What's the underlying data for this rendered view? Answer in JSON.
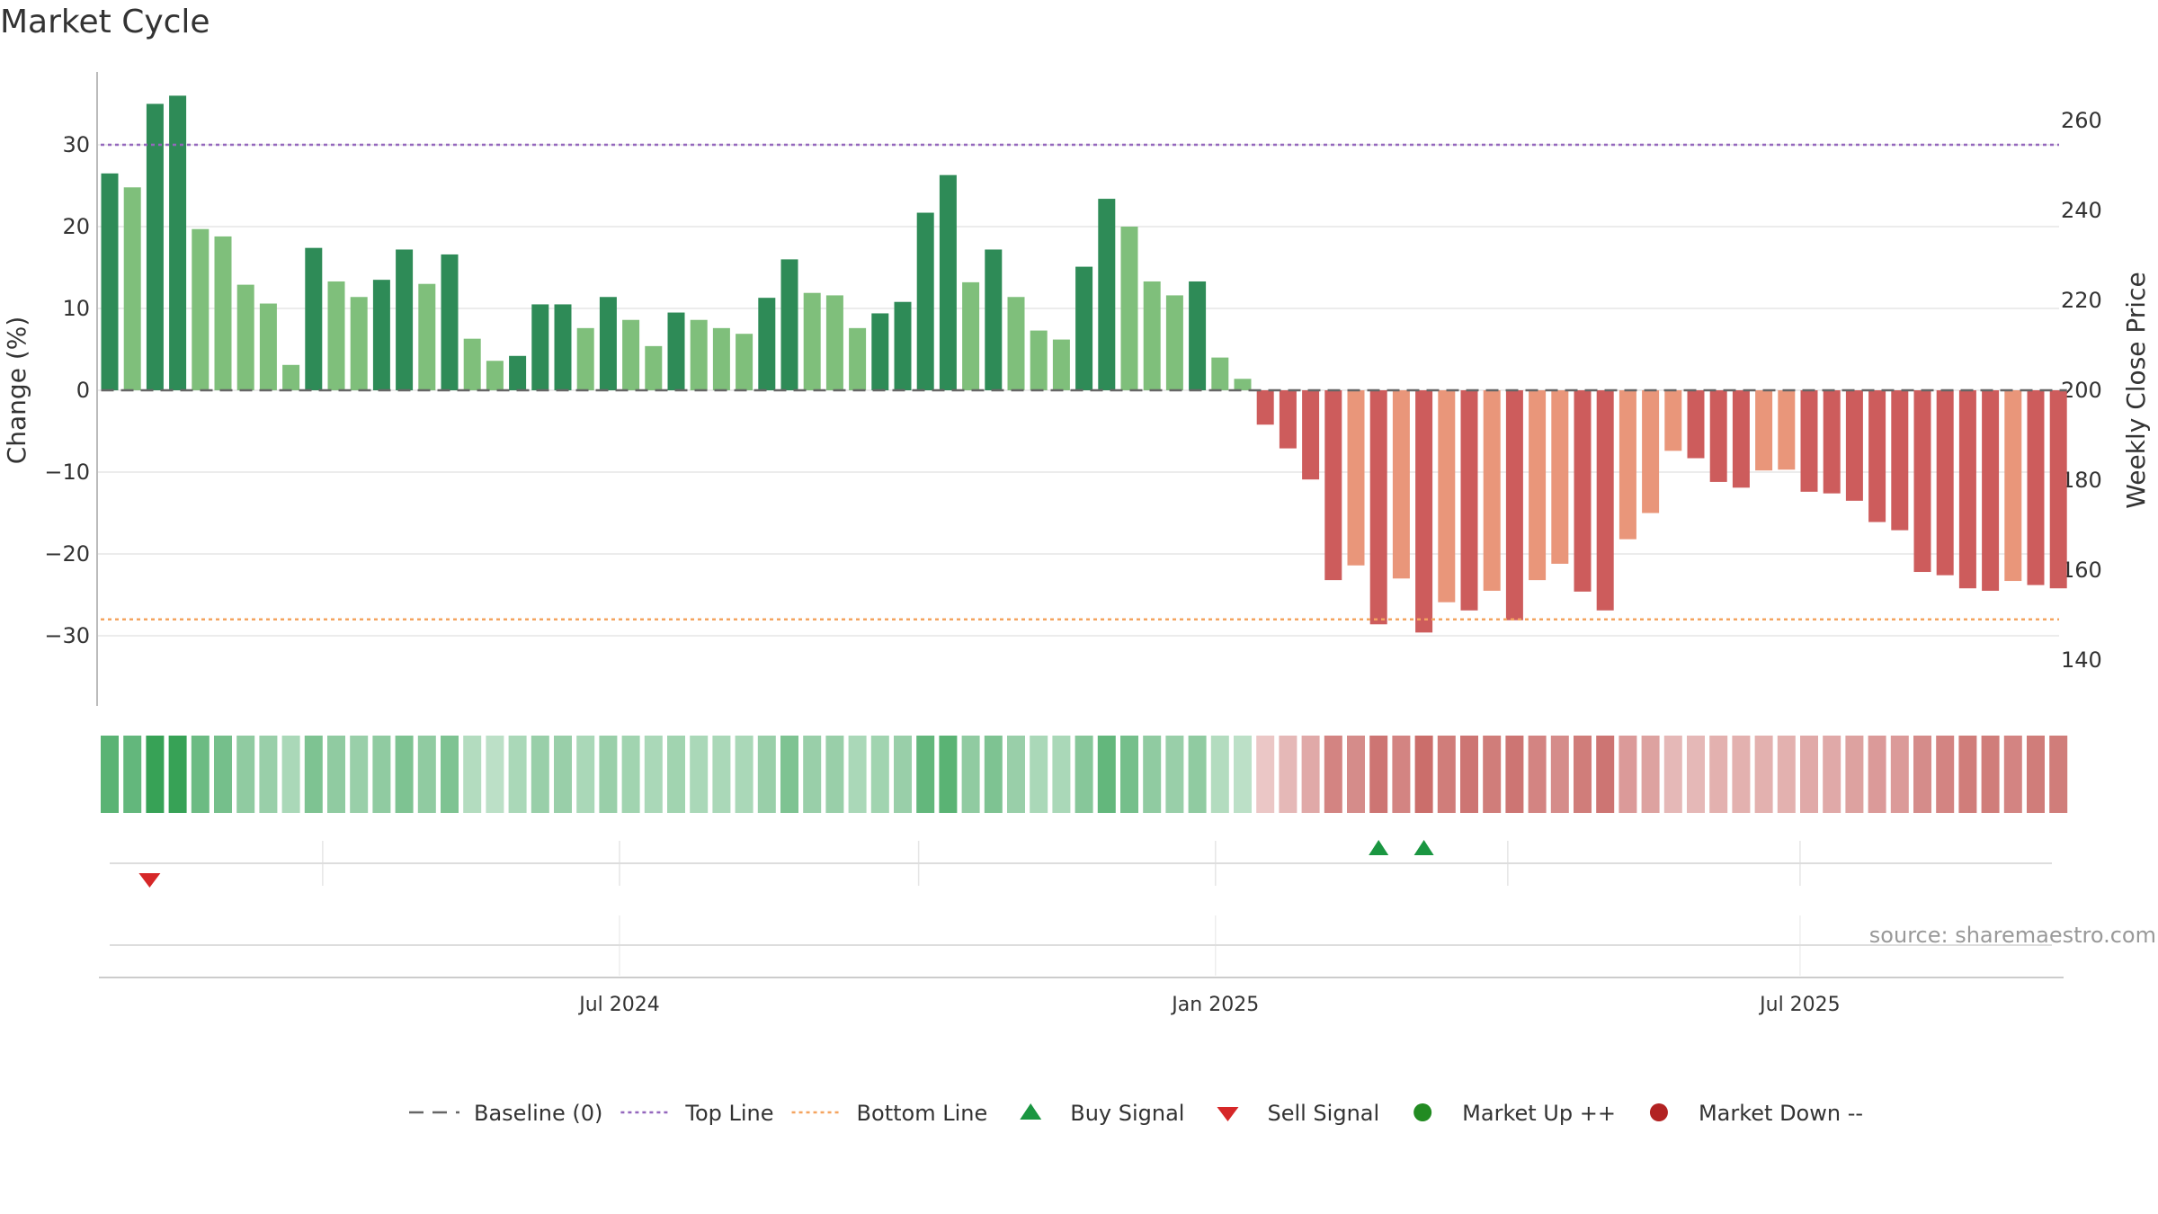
{
  "chart_data": {
    "type": "bar",
    "title": "Market Cycle",
    "ylabel": "Change (%)",
    "y2label": "Weekly Close Price",
    "ylim": [
      -39,
      39
    ],
    "y2lim": [
      127.5,
      267.5
    ],
    "yticks": [
      -30,
      -20,
      -10,
      0,
      10,
      20,
      30
    ],
    "y2ticks": [
      140,
      160,
      180,
      200,
      220,
      240,
      260
    ],
    "top_line": 30,
    "bottom_line": -28,
    "grid": true,
    "x_ticks": [
      {
        "label": "Jul 2024",
        "week": 22.5
      },
      {
        "label": "Jan 2025",
        "week": 48.8
      },
      {
        "label": "Jul 2025",
        "week": 74.6
      }
    ],
    "values": [
      26.5,
      24.8,
      35.0,
      36.0,
      19.7,
      18.8,
      12.9,
      10.6,
      3.1,
      17.4,
      13.3,
      11.4,
      13.5,
      17.2,
      13.0,
      16.6,
      6.3,
      3.6,
      4.2,
      10.5,
      10.5,
      7.6,
      11.4,
      8.6,
      5.4,
      9.5,
      8.6,
      7.6,
      6.9,
      11.3,
      16.0,
      11.9,
      11.6,
      7.6,
      9.4,
      10.8,
      21.7,
      26.3,
      13.2,
      17.2,
      11.4,
      7.3,
      6.2,
      15.1,
      23.4,
      20.0,
      13.3,
      11.6,
      13.3,
      4.0,
      1.4,
      -4.2,
      -7.1,
      -10.9,
      -23.2,
      -21.4,
      -28.6,
      -23.0,
      -29.6,
      -25.9,
      -26.9,
      -24.5,
      -28.1,
      -23.2,
      -21.2,
      -24.6,
      -26.9,
      -18.2,
      -15.0,
      -7.4,
      -8.3,
      -11.2,
      -11.9,
      -9.8,
      -9.7,
      -12.4,
      -12.6,
      -13.5,
      -16.1,
      -17.1,
      -22.2,
      -22.6,
      -24.2,
      -24.5,
      -23.3,
      -23.8,
      -24.2
    ],
    "strong": [
      1,
      0,
      1,
      1,
      0,
      0,
      0,
      0,
      0,
      1,
      0,
      0,
      1,
      1,
      0,
      1,
      0,
      0,
      1,
      1,
      1,
      0,
      1,
      0,
      0,
      1,
      0,
      0,
      0,
      1,
      1,
      0,
      0,
      0,
      1,
      1,
      1,
      1,
      0,
      1,
      0,
      0,
      0,
      1,
      1,
      0,
      0,
      0,
      1,
      0,
      0,
      1,
      1,
      1,
      1,
      0,
      1,
      0,
      1,
      0,
      1,
      0,
      1,
      0,
      0,
      1,
      1,
      0,
      0,
      0,
      1,
      1,
      1,
      0,
      0,
      1,
      1,
      1,
      1,
      1,
      1,
      1,
      1,
      1,
      0,
      1,
      1
    ],
    "heat": [
      0.75,
      0.7,
      0.95,
      0.95,
      0.65,
      0.6,
      0.45,
      0.4,
      0.3,
      0.55,
      0.45,
      0.4,
      0.45,
      0.55,
      0.45,
      0.55,
      0.25,
      0.2,
      0.3,
      0.4,
      0.4,
      0.3,
      0.4,
      0.35,
      0.3,
      0.35,
      0.3,
      0.3,
      0.3,
      0.4,
      0.55,
      0.4,
      0.4,
      0.3,
      0.35,
      0.4,
      0.7,
      0.75,
      0.45,
      0.55,
      0.4,
      0.3,
      0.3,
      0.5,
      0.7,
      0.6,
      0.45,
      0.4,
      0.45,
      0.25,
      0.2,
      0.2,
      0.3,
      0.4,
      0.65,
      0.6,
      0.75,
      0.65,
      0.8,
      0.7,
      0.75,
      0.7,
      0.75,
      0.65,
      0.6,
      0.7,
      0.75,
      0.5,
      0.45,
      0.3,
      0.3,
      0.35,
      0.35,
      0.35,
      0.35,
      0.4,
      0.4,
      0.45,
      0.5,
      0.5,
      0.6,
      0.65,
      0.7,
      0.7,
      0.65,
      0.7,
      0.7
    ],
    "buy_signals": [
      56,
      58
    ],
    "sell_signals": [
      2
    ],
    "colors": {
      "strong_up": "#2e8b57",
      "weak_up": "#7fbf7b",
      "strong_down": "#cd5c5c",
      "weak_down": "#e9967a",
      "top_line": "#9467bd",
      "bottom_line": "#f4a460",
      "baseline": "#666666",
      "buy": "#1a9641",
      "sell": "#d62728",
      "market_up": "#228b22",
      "market_down": "#b22222"
    },
    "legend": [
      {
        "label": "Baseline (0)",
        "kind": "dash"
      },
      {
        "label": "Top Line",
        "kind": "dot-purple"
      },
      {
        "label": "Bottom Line",
        "kind": "dot-orange"
      },
      {
        "label": "Buy Signal",
        "kind": "tri-up"
      },
      {
        "label": "Sell Signal",
        "kind": "tri-down"
      },
      {
        "label": "Market Up ++",
        "kind": "circle-green"
      },
      {
        "label": "Market Down --",
        "kind": "circle-red"
      }
    ],
    "legend_position": "bottom-center",
    "source": "source: sharemaestro.com"
  }
}
